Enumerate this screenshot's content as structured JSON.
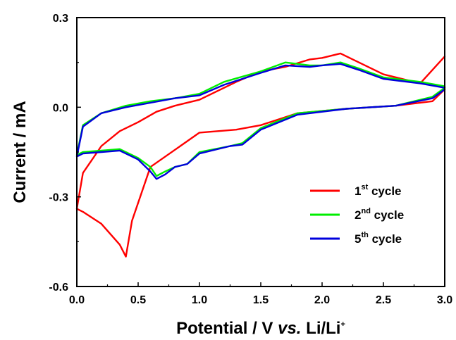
{
  "chart_data": {
    "type": "line",
    "xlabel_main": "Potential / V ",
    "xlabel_italic": "vs.",
    "xlabel_tail": " Li/Li",
    "xlabel_sup": "+",
    "ylabel": "Current / mA",
    "xlim": [
      0.0,
      3.0
    ],
    "ylim": [
      -0.6,
      0.3
    ],
    "x_ticks": [
      "0.0",
      "0.5",
      "1.0",
      "1.5",
      "2.0",
      "2.5",
      "3.0"
    ],
    "x_tick_values": [
      0.0,
      0.5,
      1.0,
      1.5,
      2.0,
      2.5,
      3.0
    ],
    "y_ticks": [
      "0.3",
      "0.0",
      "-0.3",
      "-0.6"
    ],
    "y_tick_values": [
      0.3,
      0.0,
      -0.3,
      -0.6
    ],
    "legend_position": "bottom-right",
    "series": [
      {
        "legend_num": "1",
        "legend_sup": "st",
        "legend_rest": " cycle",
        "color": "#ff0000",
        "x": [
          3.0,
          2.9,
          2.6,
          2.2,
          1.8,
          1.5,
          1.3,
          1.0,
          0.6,
          0.45,
          0.4,
          0.35,
          0.2,
          0.05,
          0.0,
          0.05,
          0.2,
          0.35,
          0.5,
          0.65,
          0.8,
          1.0,
          1.3,
          1.5,
          1.7,
          1.9,
          2.0,
          2.15,
          2.2,
          2.5,
          2.8,
          3.0
        ],
        "y": [
          0.06,
          0.02,
          0.005,
          -0.005,
          -0.02,
          -0.06,
          -0.075,
          -0.085,
          -0.2,
          -0.38,
          -0.5,
          -0.46,
          -0.39,
          -0.35,
          -0.34,
          -0.22,
          -0.13,
          -0.08,
          -0.05,
          -0.015,
          0.005,
          0.025,
          0.085,
          0.12,
          0.135,
          0.16,
          0.165,
          0.18,
          0.17,
          0.11,
          0.08,
          0.17
        ]
      },
      {
        "legend_num": "2",
        "legend_sup": "nd",
        "legend_rest": " cycle",
        "color": "#00ee00",
        "x": [
          3.0,
          2.9,
          2.6,
          2.2,
          1.8,
          1.5,
          1.35,
          1.25,
          1.0,
          0.9,
          0.8,
          0.72,
          0.65,
          0.6,
          0.5,
          0.35,
          0.2,
          0.05,
          0.0,
          0.05,
          0.2,
          0.4,
          0.6,
          0.8,
          1.0,
          1.2,
          1.5,
          1.7,
          1.9,
          2.0,
          2.15,
          2.3,
          2.5,
          2.8,
          3.0
        ],
        "y": [
          0.065,
          0.035,
          0.005,
          -0.005,
          -0.02,
          -0.07,
          -0.12,
          -0.13,
          -0.15,
          -0.19,
          -0.2,
          -0.215,
          -0.23,
          -0.2,
          -0.17,
          -0.14,
          -0.145,
          -0.15,
          -0.16,
          -0.06,
          -0.02,
          0.005,
          0.02,
          0.03,
          0.045,
          0.085,
          0.12,
          0.15,
          0.14,
          0.14,
          0.15,
          0.13,
          0.1,
          0.085,
          0.07
        ]
      },
      {
        "legend_num": "5",
        "legend_sup": "th",
        "legend_rest": " cycle",
        "color": "#0000dd",
        "x": [
          3.0,
          2.9,
          2.6,
          2.2,
          1.8,
          1.5,
          1.35,
          1.25,
          1.0,
          0.9,
          0.8,
          0.72,
          0.65,
          0.6,
          0.5,
          0.35,
          0.2,
          0.05,
          0.0,
          0.05,
          0.2,
          0.4,
          0.6,
          0.8,
          1.0,
          1.2,
          1.5,
          1.7,
          1.9,
          2.0,
          2.15,
          2.3,
          2.5,
          2.8,
          3.0
        ],
        "y": [
          0.06,
          0.03,
          0.005,
          -0.005,
          -0.025,
          -0.075,
          -0.125,
          -0.13,
          -0.155,
          -0.19,
          -0.2,
          -0.225,
          -0.24,
          -0.215,
          -0.175,
          -0.145,
          -0.15,
          -0.155,
          -0.165,
          -0.065,
          -0.02,
          0.0,
          0.015,
          0.03,
          0.04,
          0.075,
          0.115,
          0.14,
          0.135,
          0.14,
          0.145,
          0.125,
          0.095,
          0.08,
          0.065
        ]
      }
    ]
  }
}
